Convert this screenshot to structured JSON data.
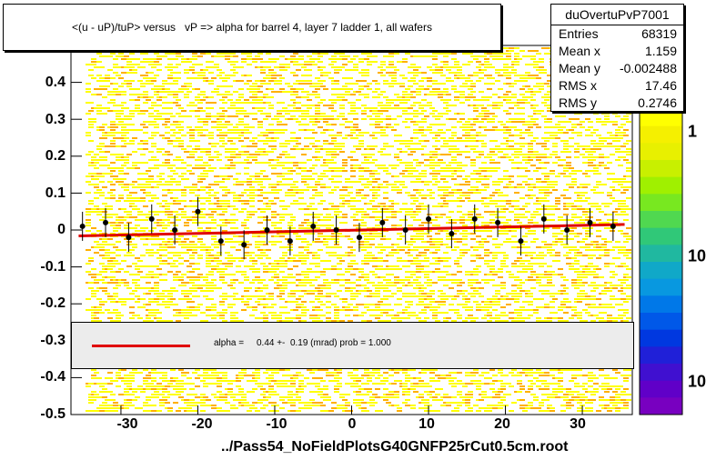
{
  "title": "<(u - uP)/tuP> versus   vP => alpha for barrel 4, layer 7 ladder 1, all wafers",
  "stats": {
    "name": "duOvertuPvP7001",
    "rows": [
      {
        "label": "Entries",
        "value": "68319"
      },
      {
        "label": "Mean x",
        "value": "1.159"
      },
      {
        "label": "Mean y",
        "value": "-0.002488"
      },
      {
        "label": "RMS x",
        "value": "17.46"
      },
      {
        "label": "RMS y",
        "value": "0.2746"
      }
    ]
  },
  "fit": {
    "label": "alpha =     0.44 +-  0.19 (mrad) prob = 1.000",
    "color": "#e00000"
  },
  "footer": "../Pass54_NoFieldPlotsG40GNFP25rCut0.5cm.root",
  "colors": {
    "hist_yellow": "#ffff00",
    "hist_orange": "#ffb000",
    "points": "#000000",
    "open_markers": "#e040e0",
    "fit_line": "#e00000"
  },
  "chart_data": {
    "type": "scatter",
    "title": "<(u - uP)/tuP> versus   vP => alpha for barrel 4, layer 7 ladder 1, all wafers",
    "xlim": [
      -36.5,
      36.5
    ],
    "ylim": [
      -0.5,
      0.5
    ],
    "x_ticks": [
      "-30",
      "-20",
      "-10",
      "0",
      "10",
      "20",
      "30"
    ],
    "y_ticks": [
      "-0.5",
      "-0.4",
      "-0.3",
      "-0.2",
      "-0.1",
      "0",
      "0.1",
      "0.2",
      "0.3",
      "0.4"
    ],
    "z_ticks": [
      "1",
      "10",
      "10"
    ],
    "grid": false,
    "fit_line": {
      "x": [
        -35.5,
        35.5
      ],
      "y": [
        -0.016,
        0.015
      ]
    },
    "series": [
      {
        "name": "profile",
        "x": [
          -35,
          -32,
          -29,
          -26,
          -23,
          -20,
          -17,
          -14,
          -11,
          -8,
          -5,
          -2,
          1,
          4,
          7,
          10,
          13,
          16,
          19,
          22,
          25,
          28,
          31,
          34
        ],
        "y": [
          0.01,
          0.02,
          -0.02,
          0.03,
          0.0,
          0.05,
          -0.03,
          -0.04,
          0.0,
          -0.03,
          0.01,
          0.0,
          -0.02,
          0.02,
          0.0,
          0.03,
          -0.01,
          0.03,
          0.02,
          -0.03,
          0.03,
          0.0,
          0.02,
          0.01
        ]
      }
    ]
  }
}
